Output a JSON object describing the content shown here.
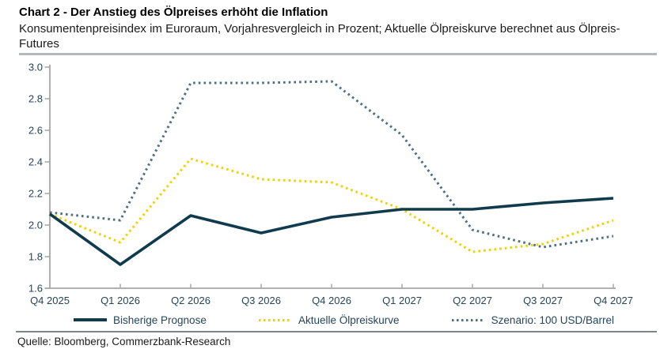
{
  "header": {
    "title": "Chart 2 - Der Anstieg des Ölpreises erhöht die Inflation",
    "subtitle": "Konsumentenpreisindex im Euroraum, Vorjahresvergleich in Prozent; Aktuelle Ölpreiskurve berechnet aus Ölpreis-Futures"
  },
  "footer": {
    "source": "Quelle: Bloomberg, Commerzbank-Research"
  },
  "colors": {
    "axis": "#a6a6a6",
    "axis_text": "#24455a",
    "bisherige_prognose": "#0f3b4c",
    "aktuelle_oelpreiskurve": "#f2d100",
    "szenario": "#4c7083"
  },
  "chart_data": {
    "type": "line",
    "title": "Chart 2 - Der Anstieg des Ölpreises erhöht die Inflation",
    "subtitle": "Konsumentenpreisindex im Euroraum, Vorjahresvergleich in Prozent; Aktuelle Ölpreiskurve berechnet aus Ölpreis-Futures",
    "xlabel": "",
    "ylabel": "",
    "x": [
      "Q4 2025",
      "Q1 2026",
      "Q2 2026",
      "Q3 2026",
      "Q4 2026",
      "Q1 2027",
      "Q2 2027",
      "Q3 2027",
      "Q4 2027"
    ],
    "series": [
      {
        "name": "Bisherige Prognose",
        "style": "solid",
        "color": "#0f3b4c",
        "values": [
          2.07,
          1.75,
          2.06,
          1.95,
          2.05,
          2.1,
          2.1,
          2.14,
          2.17
        ]
      },
      {
        "name": "Aktuelle Ölpreiskurve",
        "style": "dotted",
        "color": "#f2d100",
        "values": [
          2.07,
          1.89,
          2.42,
          2.29,
          2.27,
          2.1,
          1.83,
          1.88,
          2.03
        ]
      },
      {
        "name": "Szenario: 100 USD/Barrel",
        "style": "dotted",
        "color": "#4c7083",
        "values": [
          2.08,
          2.03,
          2.9,
          2.9,
          2.91,
          2.57,
          1.97,
          1.86,
          1.93
        ]
      }
    ],
    "ylim": [
      1.6,
      3.0
    ],
    "ytick_step": 0.2,
    "grid": false,
    "legend_position": "bottom"
  }
}
